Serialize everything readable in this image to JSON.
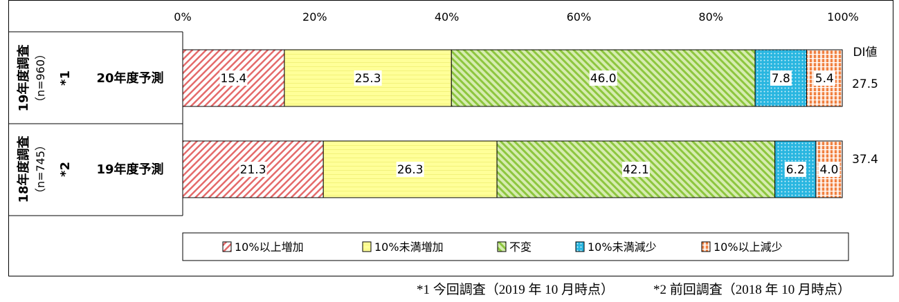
{
  "chart_data": {
    "type": "bar",
    "orientation": "horizontal",
    "stacked": true,
    "xlim": [
      0,
      100
    ],
    "x_ticks": [
      "0%",
      "20%",
      "40%",
      "60%",
      "80%",
      "100%"
    ],
    "grid": false,
    "legend_position": "bottom",
    "rows": [
      {
        "group": "19年度調査",
        "n": "（n=960）",
        "mark": "*1",
        "label": "20年度予測",
        "di": "27.5"
      },
      {
        "group": "18年度調査",
        "n": "（n=745）",
        "mark": "*2",
        "label": "19年度予測",
        "di": "37.4"
      }
    ],
    "di_header": "DI値",
    "series": [
      {
        "name": "10%以上増加",
        "color": "#e46a6a",
        "pattern": "diagonal-red",
        "values": [
          15.4,
          21.3
        ]
      },
      {
        "name": "10%未満増加",
        "color": "#ffff99",
        "pattern": "light-yellow",
        "values": [
          25.3,
          26.3
        ]
      },
      {
        "name": "不変",
        "color": "#8dc63f",
        "pattern": "diagonal-green",
        "values": [
          46.0,
          42.1
        ]
      },
      {
        "name": "10%未満減少",
        "color": "#29b6e0",
        "pattern": "dotted-blue",
        "values": [
          7.8,
          6.2
        ]
      },
      {
        "name": "10%以上減少",
        "color": "#f08040",
        "pattern": "grid-orange",
        "values": [
          5.4,
          4.0
        ]
      }
    ],
    "value_labels": [
      [
        "15.4",
        "25.3",
        "46.0",
        "7.8",
        "5.4"
      ],
      [
        "21.3",
        "26.3",
        "42.1",
        "6.2",
        "4.0"
      ]
    ]
  },
  "footnotes": {
    "note1": "*1  今回調査（2019 年 10 月時点）",
    "note2": "*2  前回調査（2018 年 10 月時点）"
  }
}
